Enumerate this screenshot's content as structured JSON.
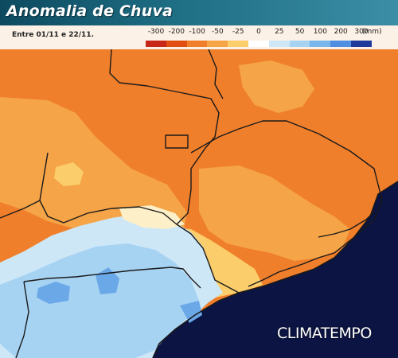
{
  "header": {
    "title": "Anomalia de Chuva"
  },
  "legend": {
    "period": "Entre 01/11 e 22/11.",
    "unit": "(mm)",
    "classes": [
      {
        "label": "-300",
        "color": "#c8281a"
      },
      {
        "label": "-200",
        "color": "#e04e12"
      },
      {
        "label": "-100",
        "color": "#f07f2c"
      },
      {
        "label": "-50",
        "color": "#f5a447"
      },
      {
        "label": "-25",
        "color": "#fbcd6b"
      },
      {
        "label": "0",
        "color": "#ffffff"
      },
      {
        "label": "25",
        "color": "#cde7f7"
      },
      {
        "label": "50",
        "color": "#a7d3f3"
      },
      {
        "label": "100",
        "color": "#79b6ec"
      },
      {
        "label": "200",
        "color": "#4f8ee0"
      },
      {
        "label": "300",
        "color": "#1f3a9a"
      }
    ]
  },
  "map": {
    "colors": {
      "strong_deficit": "#f07f2c",
      "moderate_deficit": "#f5a447",
      "weak_deficit": "#fbcd6b",
      "near_normal": "#fdf0c8",
      "weak_surplus": "#cde7f7",
      "surplus": "#a7d3f3",
      "strong_surplus": "#6aa8e8",
      "ocean": "#0b1442",
      "borders": "#1a1a1a"
    }
  },
  "brand": {
    "logo": "CLIMATEMPO"
  }
}
